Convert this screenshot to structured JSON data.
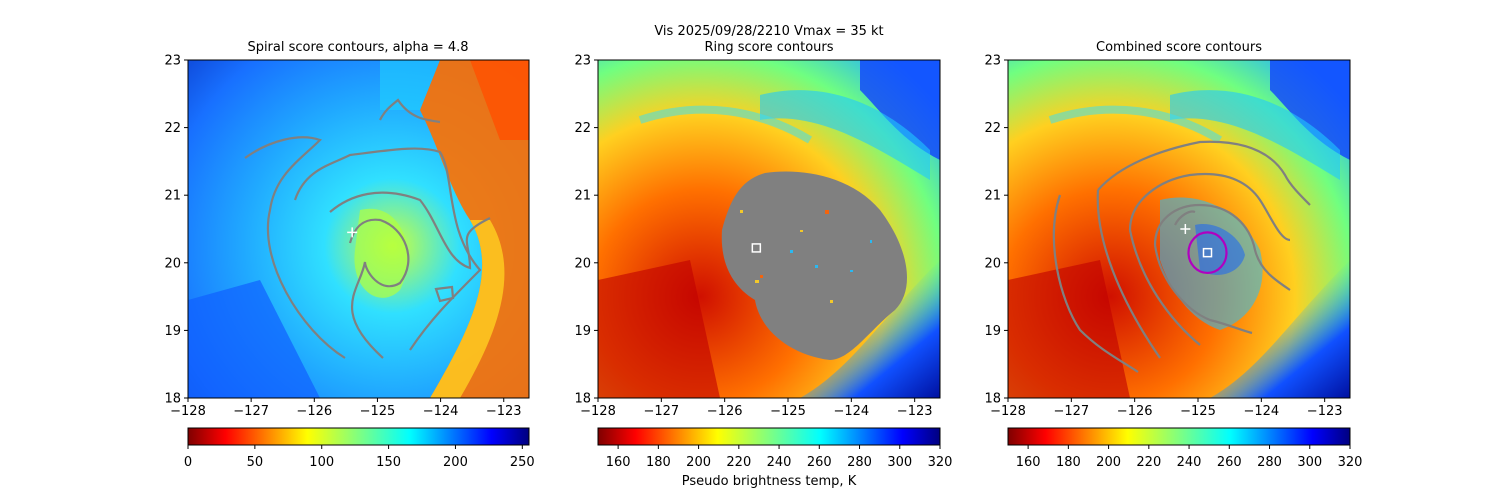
{
  "figure": {
    "suptitle": "Vis  2025/09/28/2210    Vmax = 35 kt"
  },
  "chart_data": [
    {
      "type": "heatmap",
      "title": "Spiral score contours, alpha =  4.8",
      "x_ticks": [
        -128,
        -127,
        -126,
        -125,
        -124,
        -123
      ],
      "y_ticks": [
        18,
        19,
        20,
        21,
        22,
        23
      ],
      "xlim": [
        -128.0,
        -122.6
      ],
      "ylim": [
        18.0,
        23.0
      ],
      "colorbar": {
        "ticks": [
          0,
          50,
          100,
          150,
          200,
          250
        ],
        "range": [
          0,
          255
        ],
        "label": "",
        "cmap": "jet_r"
      },
      "markers": [
        {
          "kind": "plus",
          "lon": -125.4,
          "lat": 20.45,
          "color": "#ffffff"
        }
      ],
      "contours": [
        {
          "points": [
            [
              -125.0,
              19.0
            ],
            [
              -124.85,
              20.0
            ],
            [
              -124.85,
              20.6
            ],
            [
              -125.25,
              20.65
            ],
            [
              -125.6,
              20.2
            ],
            [
              -125.4,
              19.8
            ],
            [
              -125.1,
              19.6
            ],
            [
              -124.6,
              19.7
            ],
            [
              -124.4,
              20.2
            ],
            [
              -124.5,
              20.6
            ],
            [
              -124.9,
              20.7
            ]
          ],
          "color": "#808080"
        },
        {
          "points": [
            [
              -124.05,
              19.45
            ],
            [
              -123.8,
              19.5
            ],
            [
              -123.8,
              19.65
            ],
            [
              -124.1,
              19.62
            ],
            [
              -124.1,
              19.5
            ]
          ],
          "color": "#808080"
        }
      ]
    },
    {
      "type": "heatmap",
      "title": "Ring score contours",
      "x_ticks": [
        -128,
        -127,
        -126,
        -125,
        -124,
        -123
      ],
      "y_ticks": [
        18,
        19,
        20,
        21,
        22,
        23
      ],
      "xlim": [
        -128.0,
        -122.6
      ],
      "ylim": [
        18.0,
        23.0
      ],
      "colorbar": {
        "ticks": [
          160,
          180,
          200,
          220,
          240,
          260,
          280,
          300,
          320
        ],
        "range": [
          150,
          320
        ],
        "label": "Pseudo brightness temp, K",
        "cmap": "jet_r"
      },
      "markers": [
        {
          "kind": "square",
          "lon": -125.5,
          "lat": 20.22,
          "color": "#ffffff"
        }
      ]
    },
    {
      "type": "heatmap",
      "title": "Combined score contours",
      "x_ticks": [
        -128,
        -127,
        -126,
        -125,
        -124,
        -123
      ],
      "y_ticks": [
        18,
        19,
        20,
        21,
        22,
        23
      ],
      "xlim": [
        -128.0,
        -122.6
      ],
      "ylim": [
        18.0,
        23.0
      ],
      "colorbar": {
        "ticks": [
          160,
          180,
          200,
          220,
          240,
          260,
          280,
          300,
          320
        ],
        "range": [
          150,
          320
        ],
        "label": "",
        "cmap": "jet_r"
      },
      "markers": [
        {
          "kind": "plus",
          "lon": -125.2,
          "lat": 20.5,
          "color": "#ffffff"
        },
        {
          "kind": "square",
          "lon": -124.85,
          "lat": 20.15,
          "color": "#ffffff"
        },
        {
          "kind": "circle",
          "lon": -124.85,
          "lat": 20.15,
          "radius_deg": 0.3,
          "color": "#b000c0"
        }
      ]
    }
  ],
  "contour_colors": {
    "line": "#808080"
  }
}
